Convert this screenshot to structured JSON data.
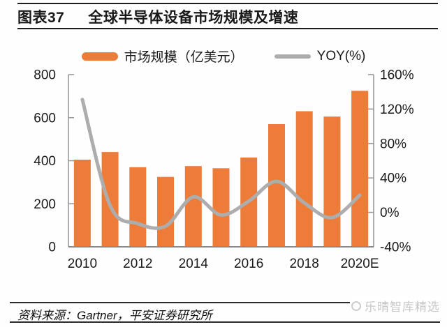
{
  "header": {
    "figure_label": "图表37",
    "title": "全球半导体设备市场规模及增速"
  },
  "legend": {
    "bar_label": "市场规模（亿美元）",
    "line_label": "YOY(%)"
  },
  "colors": {
    "bar": "#ED7C39",
    "line": "#ADADAD",
    "axis": "#999999",
    "text": "#1a1a1a"
  },
  "chart_data": {
    "type": "bar+line",
    "title": "全球半导体设备市场规模及增速",
    "categories": [
      "2010",
      "2011",
      "2012",
      "2013",
      "2014",
      "2015",
      "2016",
      "2017",
      "2018",
      "2019",
      "2020E"
    ],
    "series": [
      {
        "name": "市场规模（亿美元）",
        "type": "bar",
        "axis": "left",
        "color": "#ED7C39",
        "values": [
          405,
          440,
          370,
          325,
          375,
          365,
          415,
          570,
          630,
          605,
          725
        ]
      },
      {
        "name": "YOY(%)",
        "type": "line",
        "axis": "right",
        "color": "#ADADAD",
        "values": [
          131,
          8,
          -13,
          -16,
          18,
          -3,
          13,
          36,
          11,
          -6,
          20
        ]
      }
    ],
    "left_axis": {
      "min": 0,
      "max": 800,
      "step": 200,
      "tick_labels": [
        "0",
        "200",
        "400",
        "600",
        "800"
      ]
    },
    "right_axis": {
      "min": -40,
      "max": 160,
      "step": 40,
      "tick_labels": [
        "-40%",
        "0%",
        "40%",
        "80%",
        "120%",
        "160%"
      ]
    },
    "x_tick_labels": [
      "2010",
      "2012",
      "2014",
      "2016",
      "2018",
      "2020E"
    ],
    "x_tick_slots": [
      0,
      2,
      4,
      6,
      8,
      10
    ],
    "grid": false,
    "legend_position": "top"
  },
  "footer": {
    "source": "资料来源：Gartner，平安证券研究所",
    "watermark": "乐晴智库精选"
  }
}
